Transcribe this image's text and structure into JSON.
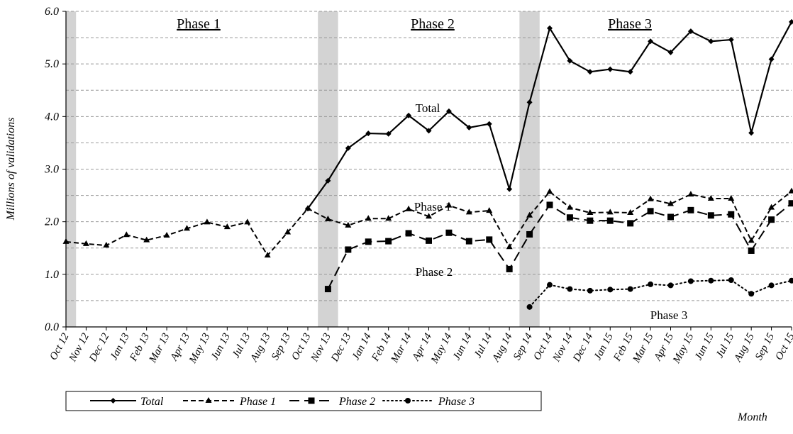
{
  "chart_data": {
    "type": "line",
    "y_label": "Millions of validations",
    "x_label": "Month",
    "annotations": [
      "Phase 1",
      "Phase 2",
      "Phase 3"
    ],
    "categories": [
      "Oct 12",
      "Nov 12",
      "Dec 12",
      "Jan 13",
      "Feb 13",
      "Mar 13",
      "Apr 13",
      "May 13",
      "Jun 13",
      "Jul 13",
      "Aug 13",
      "Sep 13",
      "Oct 13",
      "Nov 13",
      "Dec 13",
      "Jan 14",
      "Feb 14",
      "Mar 14",
      "Apr 14",
      "May 14",
      "Jun 14",
      "Jul 14",
      "Aug 14",
      "Sep 14",
      "Oct 14",
      "Nov 14",
      "Dec 14",
      "Jan 15",
      "Feb 15",
      "Mar 15",
      "Apr 15",
      "May 15",
      "Jun 15",
      "Jul 15",
      "Aug 15",
      "Sep 15",
      "Oct 15"
    ],
    "shaded_categories": [
      "Oct 12",
      "Nov 13",
      "Sep 14"
    ],
    "shade_color": "#d3d3d3",
    "ylim": [
      0,
      6
    ],
    "yticks": [
      {
        "value": 0,
        "label": "0.0"
      },
      {
        "value": 1,
        "label": "1.0"
      },
      {
        "value": 2,
        "label": "2.0"
      },
      {
        "value": 3,
        "label": "3.0"
      },
      {
        "value": 4,
        "label": "4.0"
      },
      {
        "value": 5,
        "label": "5.0"
      },
      {
        "value": 6,
        "label": "6.0"
      }
    ],
    "minor_grid": [
      0.5,
      1,
      1.5,
      2,
      2.5,
      3,
      3.5,
      4,
      4.5,
      5,
      5.5,
      6
    ],
    "grid": true,
    "series": [
      {
        "name": "Total",
        "color": "#000000",
        "marker": "diamond",
        "dash": "solid",
        "values": [
          null,
          null,
          null,
          null,
          null,
          null,
          null,
          null,
          null,
          null,
          null,
          null,
          2.25,
          2.78,
          3.4,
          3.68,
          3.67,
          4.02,
          3.73,
          4.1,
          3.79,
          3.86,
          2.62,
          4.27,
          5.68,
          5.06,
          4.85,
          4.9,
          4.85,
          5.43,
          5.22,
          5.62,
          5.43,
          5.46,
          3.69,
          5.09,
          5.8
        ]
      },
      {
        "name": "Phase 1",
        "color": "#000000",
        "marker": "triangle",
        "dash": "dashed",
        "values": [
          1.62,
          1.58,
          1.55,
          1.75,
          1.65,
          1.74,
          1.87,
          1.99,
          1.9,
          1.99,
          1.36,
          1.8,
          2.25,
          2.05,
          1.93,
          2.06,
          2.06,
          2.24,
          2.1,
          2.31,
          2.18,
          2.21,
          1.52,
          2.12,
          2.57,
          2.27,
          2.17,
          2.18,
          2.17,
          2.43,
          2.34,
          2.52,
          2.44,
          2.44,
          1.64,
          2.27,
          2.58
        ]
      },
      {
        "name": "Phase 2",
        "color": "#000000",
        "marker": "square",
        "dash": "longdash",
        "values": [
          null,
          null,
          null,
          null,
          null,
          null,
          null,
          null,
          null,
          null,
          null,
          null,
          null,
          0.72,
          1.47,
          1.62,
          1.63,
          1.78,
          1.64,
          1.79,
          1.63,
          1.66,
          1.1,
          1.76,
          2.32,
          2.08,
          2.02,
          2.02,
          1.97,
          2.2,
          2.09,
          2.22,
          2.12,
          2.14,
          1.45,
          2.04,
          2.35
        ]
      },
      {
        "name": "Phase 3",
        "color": "#000000",
        "marker": "circle",
        "dash": "dotted",
        "values": [
          null,
          null,
          null,
          null,
          null,
          null,
          null,
          null,
          null,
          null,
          null,
          null,
          null,
          null,
          null,
          null,
          null,
          null,
          null,
          null,
          null,
          null,
          null,
          0.38,
          0.8,
          0.72,
          0.69,
          0.71,
          0.72,
          0.81,
          0.79,
          0.87,
          0.88,
          0.89,
          0.63,
          0.79,
          0.88
        ]
      }
    ]
  }
}
